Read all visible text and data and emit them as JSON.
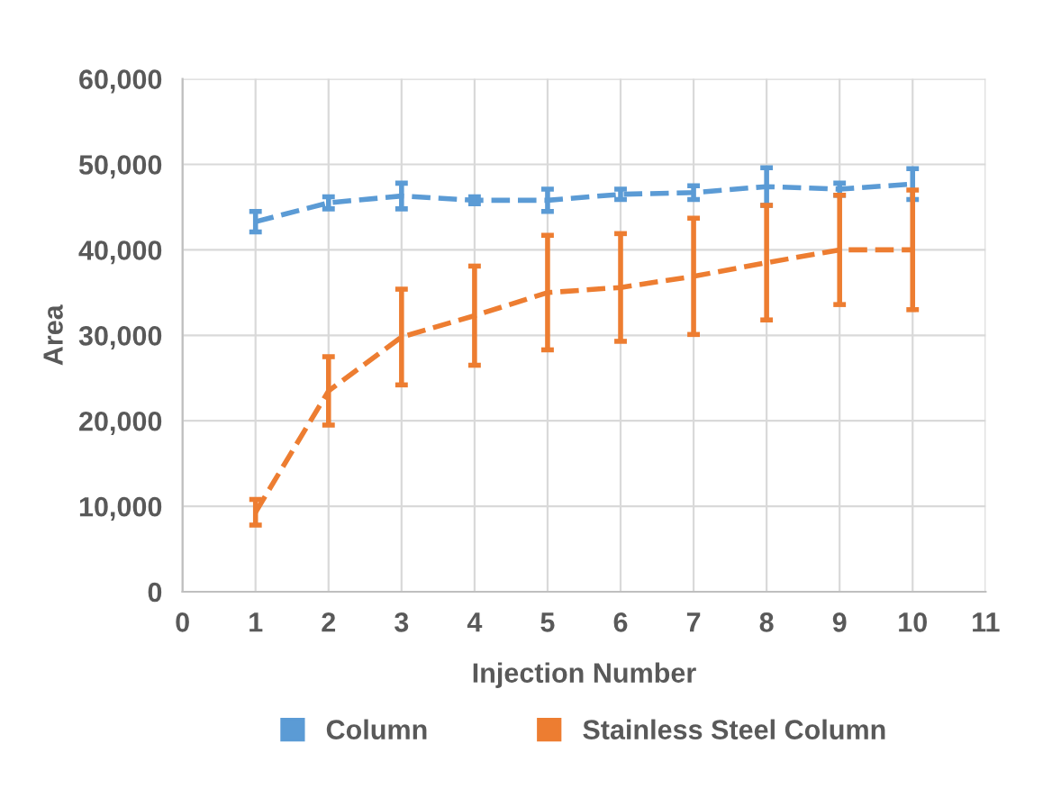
{
  "chart_data": {
    "type": "line",
    "xlabel": "Injection Number",
    "ylabel": "Area",
    "x": [
      1,
      2,
      3,
      4,
      5,
      6,
      7,
      8,
      9,
      10
    ],
    "series": [
      {
        "name": "Column",
        "color": "#5b9bd5",
        "values": [
          43300,
          45500,
          46300,
          45800,
          45800,
          46500,
          46700,
          47400,
          47100,
          47700
        ],
        "errors": [
          1200,
          700,
          1500,
          400,
          1300,
          600,
          800,
          2200,
          700,
          1800
        ]
      },
      {
        "name": "Stainless Steel Column",
        "color": "#ed7d31",
        "values": [
          9300,
          23500,
          29800,
          32300,
          35000,
          35600,
          36900,
          38500,
          40000,
          40000
        ],
        "errors": [
          1500,
          4000,
          5600,
          5800,
          6700,
          6300,
          6800,
          6700,
          6400,
          7000
        ]
      }
    ],
    "xlim": [
      0,
      11
    ],
    "xticks": [
      0,
      1,
      2,
      3,
      4,
      5,
      6,
      7,
      8,
      9,
      10,
      11
    ],
    "ylim": [
      0,
      60000
    ],
    "yticks": [
      {
        "value": 0,
        "label": "0"
      },
      {
        "value": 10000,
        "label": "10,000"
      },
      {
        "value": 20000,
        "label": "20,000"
      },
      {
        "value": 30000,
        "label": "30,000"
      },
      {
        "value": 40000,
        "label": "40,000"
      },
      {
        "value": 50000,
        "label": "50,000"
      },
      {
        "value": 60000,
        "label": "60,000"
      }
    ],
    "grid": true,
    "legend": "bottom",
    "marker": "none",
    "line_style": "dashed"
  }
}
